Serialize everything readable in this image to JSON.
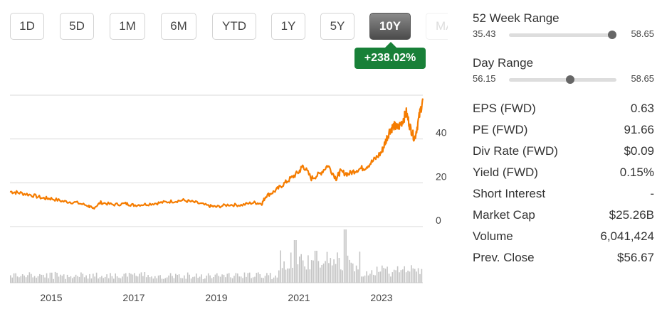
{
  "timeframe_tabs": [
    {
      "label": "1D",
      "active": false
    },
    {
      "label": "5D",
      "active": false
    },
    {
      "label": "1M",
      "active": false
    },
    {
      "label": "6M",
      "active": false
    },
    {
      "label": "YTD",
      "active": false
    },
    {
      "label": "1Y",
      "active": false
    },
    {
      "label": "5Y",
      "active": false
    },
    {
      "label": "10Y",
      "active": true
    },
    {
      "label": "MAX",
      "active": false
    }
  ],
  "change_badge": "+238.02%",
  "colors": {
    "price_line": "#f57c00",
    "volume_bar": "#c4c4c4",
    "badge": "#188038",
    "active_tab": "#5a5a5a"
  },
  "chart_data": {
    "type": "line",
    "x_ticks": [
      "2015",
      "2017",
      "2019",
      "2021",
      "2023"
    ],
    "y_ticks": [
      "0",
      "20",
      "40"
    ],
    "ylim": [
      0,
      60
    ],
    "price_series": {
      "x": [
        2014.0,
        2014.2,
        2014.5,
        2014.8,
        2015.0,
        2015.3,
        2015.6,
        2015.9,
        2016.0,
        2016.2,
        2016.5,
        2016.8,
        2017.0,
        2017.3,
        2017.6,
        2017.9,
        2018.2,
        2018.5,
        2018.8,
        2019.0,
        2019.3,
        2019.6,
        2019.9,
        2020.1,
        2020.2,
        2020.4,
        2020.6,
        2020.8,
        2021.0,
        2021.1,
        2021.3,
        2021.5,
        2021.7,
        2021.9,
        2022.0,
        2022.2,
        2022.4,
        2022.6,
        2022.8,
        2023.0,
        2023.1,
        2023.2,
        2023.3,
        2023.4,
        2023.5,
        2023.6,
        2023.7,
        2023.8,
        2023.9,
        2024.0
      ],
      "y": [
        16,
        15.5,
        14.5,
        13,
        12.8,
        11.5,
        11,
        9.5,
        8.2,
        11,
        10,
        10.5,
        9.8,
        10.2,
        10.8,
        11.5,
        12,
        11,
        9.5,
        9,
        10,
        9.8,
        11,
        10.5,
        14,
        16,
        19,
        22,
        25,
        28,
        22,
        24,
        28,
        22,
        25,
        24,
        26,
        27,
        30,
        34,
        39,
        44,
        46,
        45,
        48,
        52,
        45,
        40,
        49,
        58.5
      ]
    },
    "volume_series": {
      "note_units": "relative",
      "segments": [
        {
          "x_from": 2014.0,
          "x_to": 2020.5,
          "level": 0.15
        },
        {
          "x_from": 2020.5,
          "x_to": 2022.5,
          "level": 0.45
        },
        {
          "x_from": 2022.5,
          "x_to": 2024.0,
          "level": 0.25
        }
      ],
      "spikes": [
        {
          "x": 2020.9,
          "level": 0.8
        },
        {
          "x": 2022.1,
          "level": 1.0
        },
        {
          "x": 2021.4,
          "level": 0.6
        }
      ]
    }
  },
  "week52_range": {
    "title": "52 Week Range",
    "low": "35.43",
    "high": "58.65",
    "position": 0.96
  },
  "day_range": {
    "title": "Day Range",
    "low": "56.15",
    "high": "58.65",
    "position": 0.57
  },
  "stats": [
    {
      "label": "EPS (FWD)",
      "value": "0.63"
    },
    {
      "label": "PE (FWD)",
      "value": "91.66"
    },
    {
      "label": "Div Rate (FWD)",
      "value": "$0.09"
    },
    {
      "label": "Yield (FWD)",
      "value": "0.15%"
    },
    {
      "label": "Short Interest",
      "value": "-"
    },
    {
      "label": "Market Cap",
      "value": "$25.26B"
    },
    {
      "label": "Volume",
      "value": "6,041,424"
    },
    {
      "label": "Prev. Close",
      "value": "$56.67"
    }
  ]
}
